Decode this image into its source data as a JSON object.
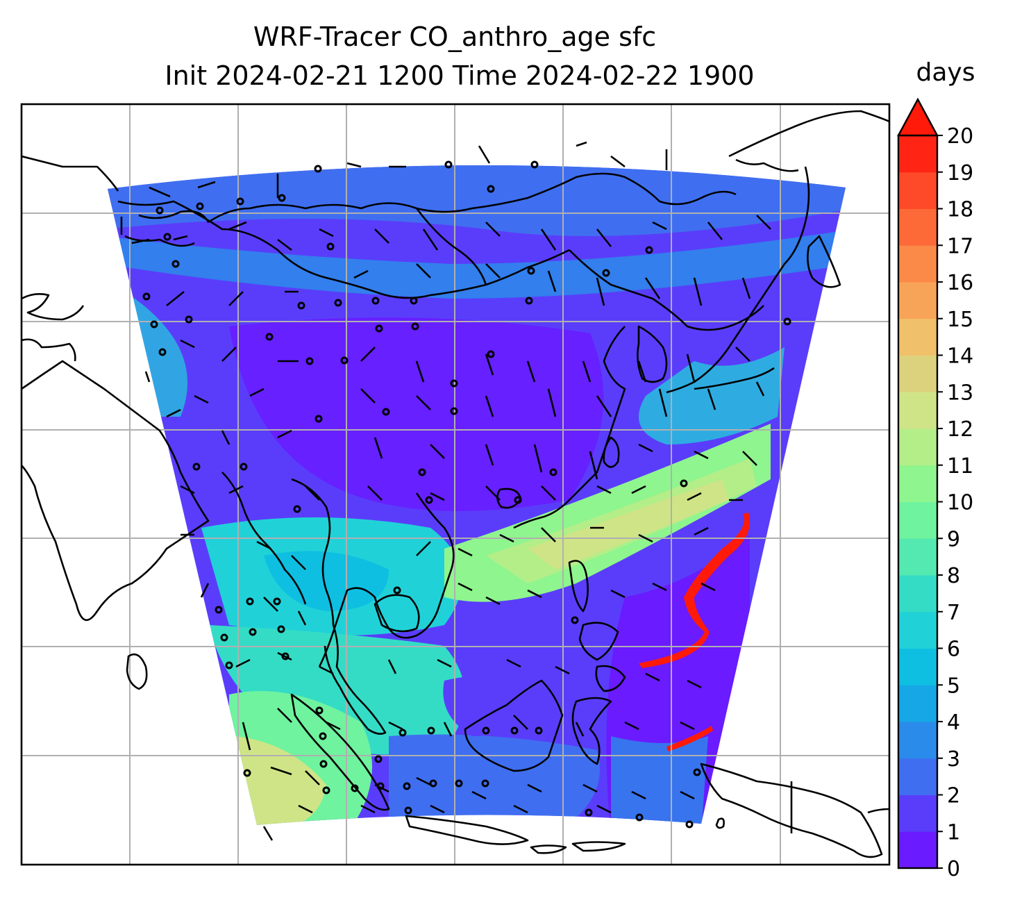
{
  "chart_data": {
    "type": "heatmap",
    "title_line1": "WRF-Tracer CO_anthro_age sfc",
    "title_line2": "Init 2024-02-21 1200 Time 2024-02-22 1900",
    "colorbar": {
      "unit_label": "days",
      "min": 0,
      "max": 20,
      "extend": "max",
      "ticks": [
        "0",
        "1",
        "2",
        "3",
        "4",
        "5",
        "6",
        "7",
        "8",
        "9",
        "10",
        "11",
        "12",
        "13",
        "14",
        "15",
        "16",
        "17",
        "18",
        "19",
        "20"
      ],
      "colors": [
        "#6a1bff",
        "#5a3dfa",
        "#3f6ff0",
        "#2b8bea",
        "#16a7e6",
        "#0fbfe1",
        "#20d2d8",
        "#34dcc6",
        "#54e9b0",
        "#6ff39e",
        "#8ff58e",
        "#b3ee88",
        "#cfe487",
        "#dcd27e",
        "#f0c06a",
        "#f8a458",
        "#fb8a48",
        "#fd6a38",
        "#fe4a28",
        "#ff2414"
      ],
      "extend_color": "#ff1a0a"
    },
    "gridlines": true,
    "field": "CO anthropogenic tracer age at surface",
    "wind_barbs": true
  },
  "colors": {
    "coast": "#000000",
    "grid": "#b0b0b0",
    "frame": "#000000"
  }
}
